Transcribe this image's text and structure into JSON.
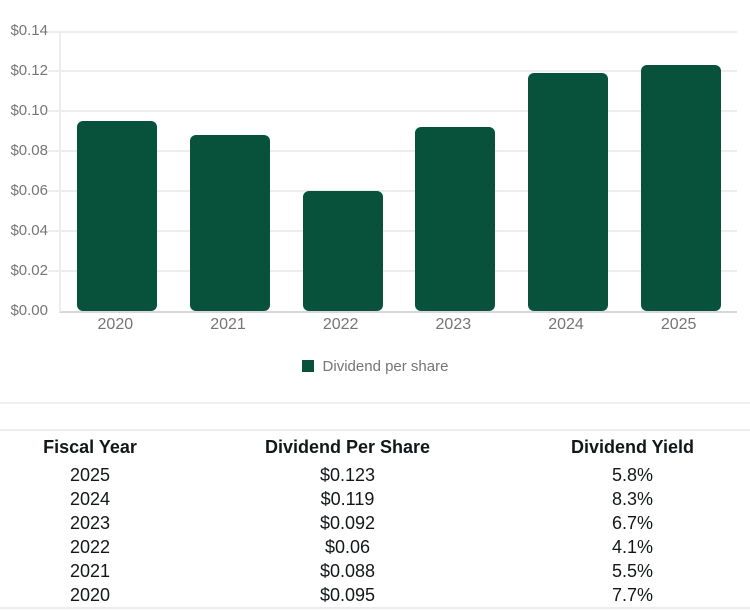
{
  "chart_data": {
    "type": "bar",
    "title": "",
    "categories": [
      "2020",
      "2021",
      "2022",
      "2023",
      "2024",
      "2025"
    ],
    "series": [
      {
        "name": "Dividend per share",
        "values": [
          0.095,
          0.088,
          0.06,
          0.092,
          0.119,
          0.123
        ]
      }
    ],
    "y_ticks": [
      "$0.14",
      "$0.12",
      "$0.10",
      "$0.08",
      "$0.06",
      "$0.04",
      "$0.02",
      "$0.00"
    ],
    "ylim": [
      0,
      0.14
    ],
    "xlabel": "",
    "ylabel": "",
    "grid": "horizontal",
    "legend_position": "bottom",
    "legend_label": "Dividend per share",
    "bar_color": "#08523C",
    "axis_text_color": "#757575"
  },
  "table": {
    "headers": [
      "Fiscal Year",
      "Dividend Per Share",
      "Dividend Yield"
    ],
    "rows": [
      [
        "2025",
        "$0.123",
        "5.8%"
      ],
      [
        "2024",
        "$0.119",
        "8.3%"
      ],
      [
        "2023",
        "$0.092",
        "6.7%"
      ],
      [
        "2022",
        "$0.06",
        "4.1%"
      ],
      [
        "2021",
        "$0.088",
        "5.5%"
      ],
      [
        "2020",
        "$0.095",
        "7.7%"
      ]
    ]
  }
}
